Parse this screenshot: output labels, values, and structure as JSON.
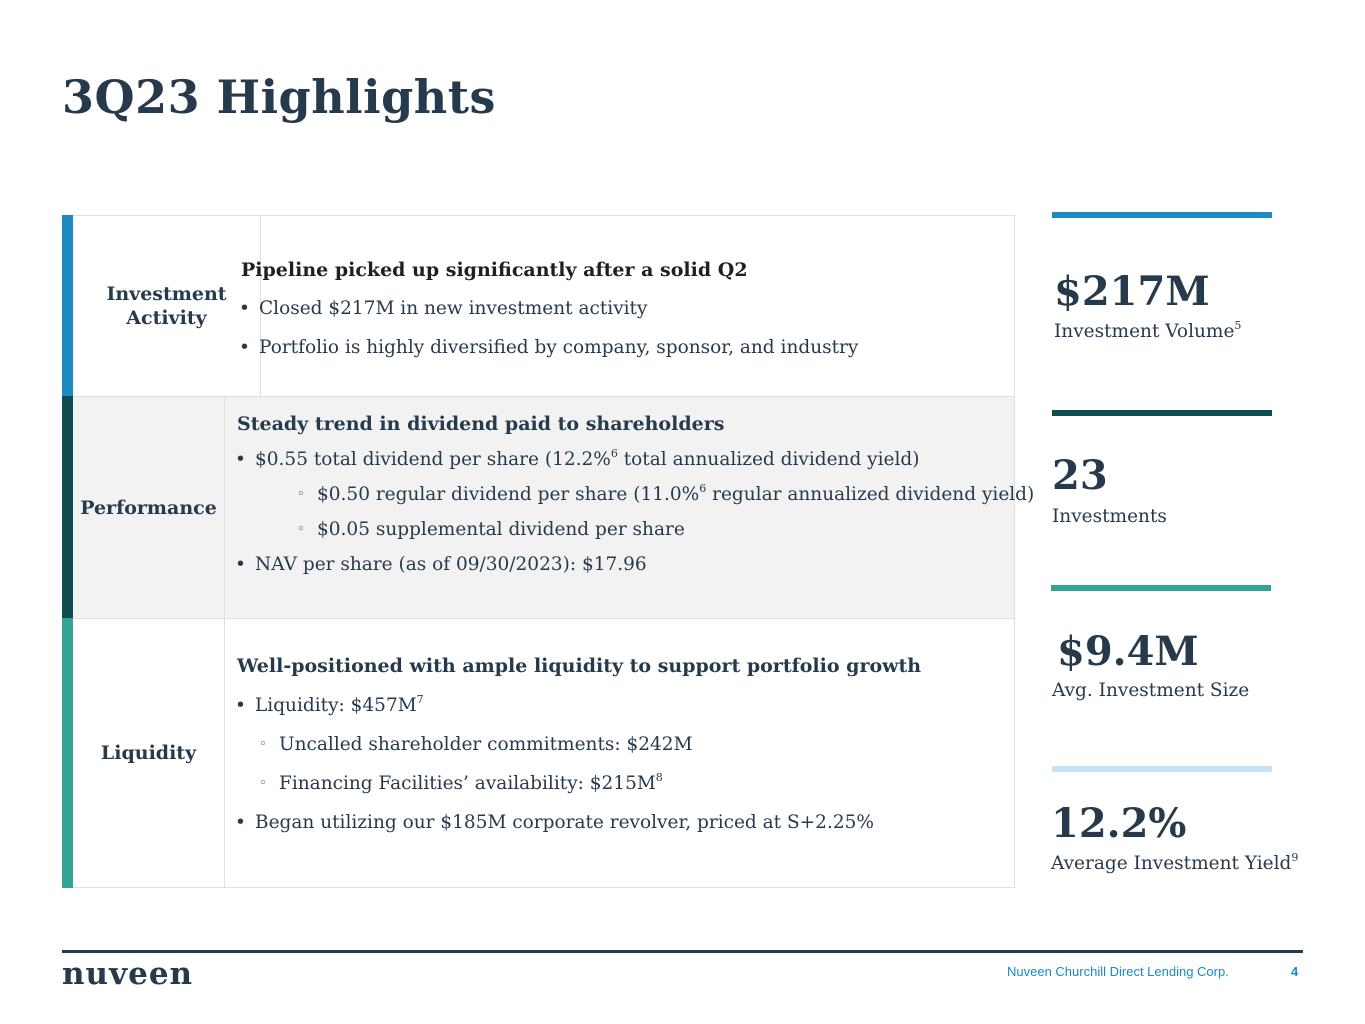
{
  "title": "3Q23 Highlights",
  "colors": {
    "investment_activity": "#1d8bc2",
    "performance": "#0f4c52",
    "liquidity": "#33a392",
    "stat4": "#c5e3f7",
    "text": "#263a4c",
    "footer_link": "#1a8ac3"
  },
  "sections": {
    "investment_activity": {
      "label": "Investment Activity",
      "heading": "Pipeline picked up significantly after a solid Q2",
      "bullets": [
        "Closed $217M in new investment activity",
        "Portfolio is highly diversified by company, sponsor, and industry"
      ]
    },
    "performance": {
      "label": "Performance",
      "heading": "Steady trend in dividend paid to shareholders",
      "b1_pre": "$0.55 total dividend per share (12.2%",
      "b1_sup": "6",
      "b1_post": " total annualized dividend yield)",
      "s1_pre": "$0.50 regular dividend per share (11.0%",
      "s1_sup": "6",
      "s1_post": " regular annualized dividend yield)",
      "s2": "$0.05 supplemental dividend per share",
      "b2": "NAV per share (as of 09/30/2023): $17.96"
    },
    "liquidity": {
      "label": "Liquidity",
      "heading": "Well-positioned with ample liquidity to support portfolio growth",
      "b1_pre": "Liquidity: $457M",
      "b1_sup": "7",
      "s1": "Uncalled shareholder commitments: $242M",
      "s2_pre": "Financing Facilities’ availability: $215M",
      "s2_sup": "8",
      "b2": "Began utilizing our $185M corporate revolver, priced at S+2.25%"
    }
  },
  "stats": [
    {
      "value": "$217M",
      "label": "Investment Volume",
      "sup": "5"
    },
    {
      "value": "23",
      "label": "Investments",
      "sup": ""
    },
    {
      "value": "$9.4M",
      "label": "Avg. Investment Size",
      "sup": ""
    },
    {
      "value": "12.2%",
      "label": "Average Investment Yield",
      "sup": "9"
    }
  ],
  "footer": {
    "logo": "nuveen",
    "company": "Nuveen Churchill Direct Lending Corp.",
    "page": "4"
  }
}
